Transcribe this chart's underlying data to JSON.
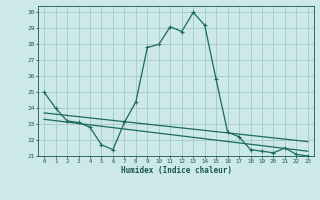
{
  "title": "",
  "xlabel": "Humidex (Indice chaleur)",
  "background_color": "#cde8e8",
  "grid_color": "#a8cccc",
  "line_color": "#1a6b5a",
  "xlim": [
    -0.5,
    23.5
  ],
  "ylim": [
    21,
    30.4
  ],
  "yticks": [
    21,
    22,
    23,
    24,
    25,
    26,
    27,
    28,
    29,
    30
  ],
  "xticks": [
    0,
    1,
    2,
    3,
    4,
    5,
    6,
    7,
    8,
    9,
    10,
    11,
    12,
    13,
    14,
    15,
    16,
    17,
    18,
    19,
    20,
    21,
    22,
    23
  ],
  "series1_x": [
    0,
    1,
    2,
    3,
    4,
    5,
    6,
    7,
    8,
    9,
    10,
    11,
    12,
    13,
    14,
    15,
    16,
    17,
    18,
    19,
    20,
    21,
    22,
    23
  ],
  "series1_y": [
    25.0,
    24.0,
    23.2,
    23.1,
    22.8,
    21.7,
    21.4,
    23.1,
    24.4,
    27.8,
    28.0,
    29.1,
    28.8,
    30.0,
    29.2,
    25.8,
    22.5,
    22.2,
    21.4,
    21.3,
    21.2,
    21.5,
    21.1,
    21.0
  ],
  "series2_x": [
    0,
    23
  ],
  "series2_y": [
    23.3,
    21.3
  ],
  "series3_x": [
    0,
    23
  ],
  "series3_y": [
    23.7,
    21.9
  ],
  "font_color": "#1a5555"
}
